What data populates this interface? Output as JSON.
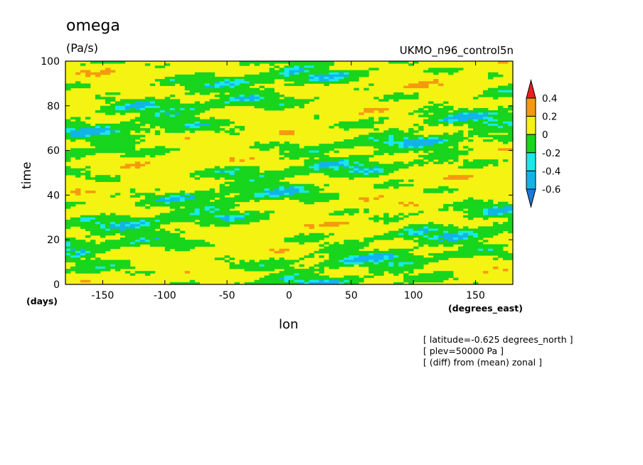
{
  "chart_data": {
    "type": "heatmap",
    "title": "omega",
    "units": "(Pa/s)",
    "dataset": "UKMO_n96_control5n",
    "xlabel": "lon",
    "ylabel": "time",
    "x_unit_label": "(degrees_east)",
    "y_unit_label": "(days)",
    "xlim": [
      -180,
      180
    ],
    "ylim": [
      0,
      100
    ],
    "x_ticks": [
      -150,
      -100,
      -50,
      0,
      50,
      100,
      150
    ],
    "y_ticks": [
      0,
      20,
      40,
      60,
      80,
      100
    ],
    "x_tick_labels": [
      "-150",
      "-100",
      "-50",
      "0",
      "50",
      "100",
      "150"
    ],
    "y_tick_labels": [
      "0",
      "20",
      "40",
      "60",
      "80",
      "100"
    ],
    "colorbar": {
      "levels": [
        -0.6,
        -0.4,
        -0.2,
        0,
        0.2,
        0.4
      ],
      "level_labels": [
        "-0.6",
        "-0.4",
        "-0.2",
        "0",
        "0.2",
        "0.4"
      ],
      "colors": [
        "#1f78d4",
        "#12b4e8",
        "#19e8ec",
        "#18d51d",
        "#f5f312",
        "#f59a10",
        "#ea1f1f"
      ],
      "extend": "both"
    },
    "notes": [
      "[ latitude=-0.625 degrees_north ]",
      "[ plev=50000 Pa ]",
      "[ (diff) from (mean) zonal ]"
    ]
  }
}
